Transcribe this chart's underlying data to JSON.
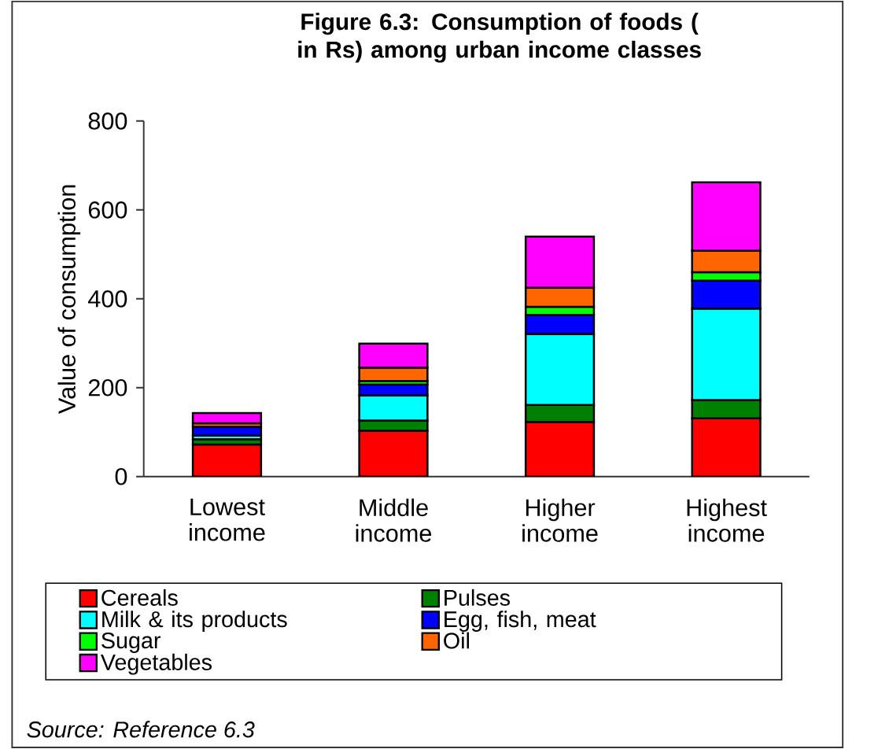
{
  "chart_data": {
    "type": "bar",
    "stacked": true,
    "title": "Figure 6.3: Consumption of foods ( in Rs) among urban income classes",
    "ylabel": "Value of consumption",
    "categories": [
      "Lowest income",
      "Middle income",
      "Higher income",
      "Highest income"
    ],
    "series": [
      {
        "name": "Cereals",
        "color": "#ff0000",
        "values": [
          72,
          103,
          123,
          131
        ]
      },
      {
        "name": "Pulses",
        "color": "#008000",
        "values": [
          12,
          23,
          38,
          41
        ]
      },
      {
        "name": "Milk & its products",
        "color": "#00ffff",
        "values": [
          8,
          57,
          160,
          206
        ]
      },
      {
        "name": "Egg, fish, meat",
        "color": "#0000ff",
        "values": [
          20,
          24,
          43,
          63
        ]
      },
      {
        "name": "Sugar",
        "color": "#00ff00",
        "values": [
          null,
          8,
          18,
          19
        ]
      },
      {
        "name": "Oil",
        "color": "#ff6600",
        "values": [
          8,
          30,
          43,
          48
        ]
      },
      {
        "name": "Vegetables",
        "color": "#ff00ff",
        "values": [
          23,
          54,
          115,
          154
        ]
      }
    ],
    "ylim": [
      0,
      800
    ],
    "yticks": [
      0,
      200,
      400,
      600,
      800
    ],
    "legend": "bottom",
    "annotations": [
      "Source: Reference 6.3"
    ]
  }
}
